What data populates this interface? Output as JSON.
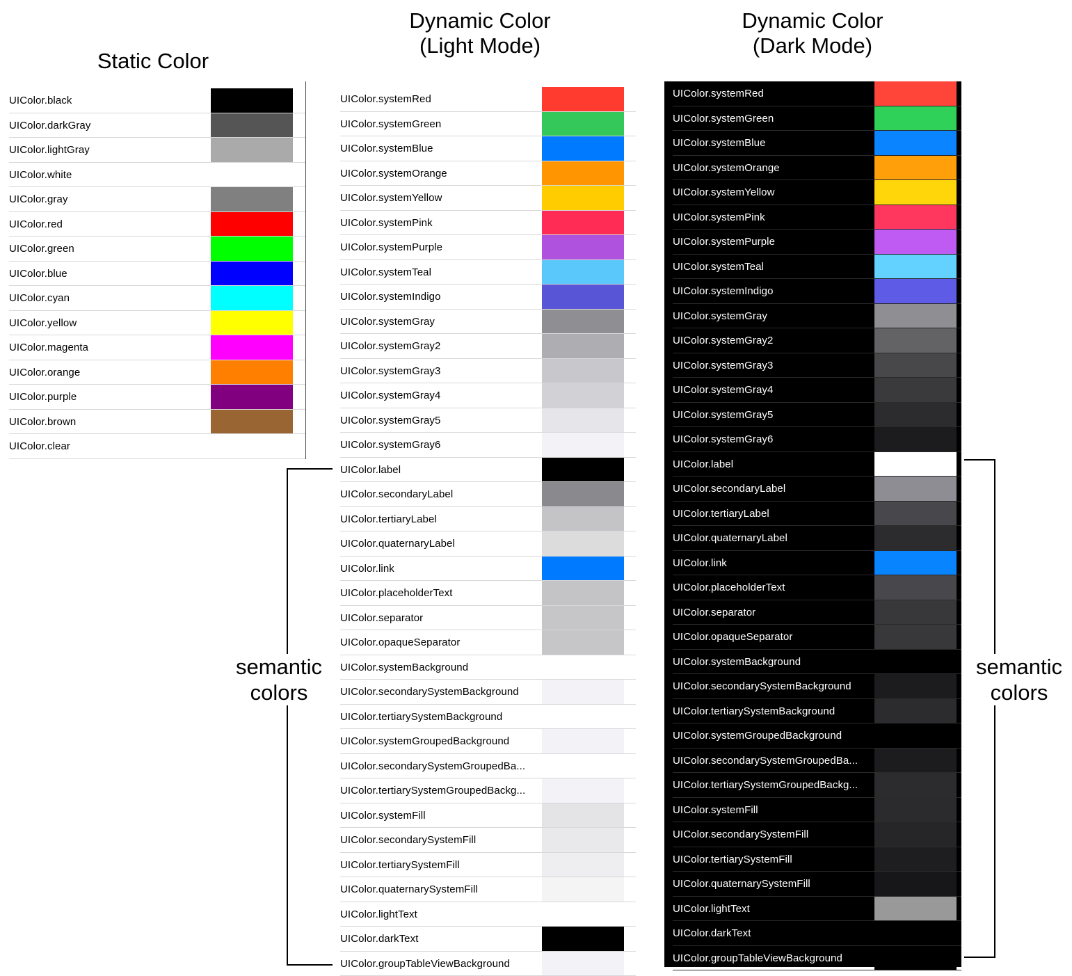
{
  "titles": {
    "static": "Static Color",
    "light": "Dynamic Color\n(Light Mode)",
    "dark": "Dynamic Color\n(Dark Mode)"
  },
  "semantic_label": "semantic\ncolors",
  "static_colors": [
    {
      "label": "UIColor.black",
      "color": "#000000"
    },
    {
      "label": "UIColor.darkGray",
      "color": "#555555"
    },
    {
      "label": "UIColor.lightGray",
      "color": "#AAAAAA"
    },
    {
      "label": "UIColor.white",
      "color": "#FFFFFF"
    },
    {
      "label": "UIColor.gray",
      "color": "#808080"
    },
    {
      "label": "UIColor.red",
      "color": "#FF0000"
    },
    {
      "label": "UIColor.green",
      "color": "#00FF00"
    },
    {
      "label": "UIColor.blue",
      "color": "#0000FF"
    },
    {
      "label": "UIColor.cyan",
      "color": "#00FFFF"
    },
    {
      "label": "UIColor.yellow",
      "color": "#FFFF00"
    },
    {
      "label": "UIColor.magenta",
      "color": "#FF00FF"
    },
    {
      "label": "UIColor.orange",
      "color": "#FF8000"
    },
    {
      "label": "UIColor.purple",
      "color": "#800080"
    },
    {
      "label": "UIColor.brown",
      "color": "#996633"
    },
    {
      "label": "UIColor.clear",
      "color": "transparent"
    }
  ],
  "light_colors": [
    {
      "label": "UIColor.systemRed",
      "color": "#FF3B30"
    },
    {
      "label": "UIColor.systemGreen",
      "color": "#34C759"
    },
    {
      "label": "UIColor.systemBlue",
      "color": "#007AFF"
    },
    {
      "label": "UIColor.systemOrange",
      "color": "#FF9500"
    },
    {
      "label": "UIColor.systemYellow",
      "color": "#FFCC00"
    },
    {
      "label": "UIColor.systemPink",
      "color": "#FF2D55"
    },
    {
      "label": "UIColor.systemPurple",
      "color": "#AF52DE"
    },
    {
      "label": "UIColor.systemTeal",
      "color": "#5AC8FA"
    },
    {
      "label": "UIColor.systemIndigo",
      "color": "#5856D6"
    },
    {
      "label": "UIColor.systemGray",
      "color": "#8E8E93"
    },
    {
      "label": "UIColor.systemGray2",
      "color": "#AEAEB2"
    },
    {
      "label": "UIColor.systemGray3",
      "color": "#C7C7CC"
    },
    {
      "label": "UIColor.systemGray4",
      "color": "#D1D1D6"
    },
    {
      "label": "UIColor.systemGray5",
      "color": "#E5E5EA"
    },
    {
      "label": "UIColor.systemGray6",
      "color": "#F2F2F7"
    },
    {
      "label": "UIColor.label",
      "color": "#000000"
    },
    {
      "label": "UIColor.secondaryLabel",
      "color": "#8A8A8E"
    },
    {
      "label": "UIColor.tertiaryLabel",
      "color": "#C4C4C6"
    },
    {
      "label": "UIColor.quaternaryLabel",
      "color": "#DCDCDD"
    },
    {
      "label": "UIColor.link",
      "color": "#007AFF"
    },
    {
      "label": "UIColor.placeholderText",
      "color": "#C4C4C6"
    },
    {
      "label": "UIColor.separator",
      "color": "#C6C6C8"
    },
    {
      "label": "UIColor.opaqueSeparator",
      "color": "#C6C6C8"
    },
    {
      "label": "UIColor.systemBackground",
      "color": "#FFFFFF"
    },
    {
      "label": "UIColor.secondarySystemBackground",
      "color": "#F2F2F7"
    },
    {
      "label": "UIColor.tertiarySystemBackground",
      "color": "#FFFFFF"
    },
    {
      "label": "UIColor.systemGroupedBackground",
      "color": "#F2F2F7"
    },
    {
      "label": "UIColor.secondarySystemGroupedBa...",
      "color": "#FFFFFF"
    },
    {
      "label": "UIColor.tertiarySystemGroupedBackg...",
      "color": "#F2F2F7"
    },
    {
      "label": "UIColor.systemFill",
      "color": "#E4E4E6"
    },
    {
      "label": "UIColor.secondarySystemFill",
      "color": "#E9E9EB"
    },
    {
      "label": "UIColor.tertiarySystemFill",
      "color": "#EEEEF0"
    },
    {
      "label": "UIColor.quaternarySystemFill",
      "color": "#F4F4F5"
    },
    {
      "label": "UIColor.lightText",
      "color": "#FFFFFF"
    },
    {
      "label": "UIColor.darkText",
      "color": "#000000"
    },
    {
      "label": "UIColor.groupTableViewBackground",
      "color": "#F2F2F7"
    }
  ],
  "dark_colors": [
    {
      "label": "UIColor.systemRed",
      "color": "#FF453A"
    },
    {
      "label": "UIColor.systemGreen",
      "color": "#30D158"
    },
    {
      "label": "UIColor.systemBlue",
      "color": "#0A84FF"
    },
    {
      "label": "UIColor.systemOrange",
      "color": "#FF9F0A"
    },
    {
      "label": "UIColor.systemYellow",
      "color": "#FFD60A"
    },
    {
      "label": "UIColor.systemPink",
      "color": "#FF375F"
    },
    {
      "label": "UIColor.systemPurple",
      "color": "#BF5AF2"
    },
    {
      "label": "UIColor.systemTeal",
      "color": "#64D2FF"
    },
    {
      "label": "UIColor.systemIndigo",
      "color": "#5E5CE6"
    },
    {
      "label": "UIColor.systemGray",
      "color": "#8E8E93"
    },
    {
      "label": "UIColor.systemGray2",
      "color": "#636366"
    },
    {
      "label": "UIColor.systemGray3",
      "color": "#48484A"
    },
    {
      "label": "UIColor.systemGray4",
      "color": "#3A3A3C"
    },
    {
      "label": "UIColor.systemGray5",
      "color": "#2C2C2E"
    },
    {
      "label": "UIColor.systemGray6",
      "color": "#1C1C1E"
    },
    {
      "label": "UIColor.label",
      "color": "#FFFFFF"
    },
    {
      "label": "UIColor.secondaryLabel",
      "color": "#8D8D93"
    },
    {
      "label": "UIColor.tertiaryLabel",
      "color": "#48484C"
    },
    {
      "label": "UIColor.quaternaryLabel",
      "color": "#2C2C2E"
    },
    {
      "label": "UIColor.link",
      "color": "#0984FF"
    },
    {
      "label": "UIColor.placeholderText",
      "color": "#48484C"
    },
    {
      "label": "UIColor.separator",
      "color": "#38383A"
    },
    {
      "label": "UIColor.opaqueSeparator",
      "color": "#38383A"
    },
    {
      "label": "UIColor.systemBackground",
      "color": "#000000"
    },
    {
      "label": "UIColor.secondarySystemBackground",
      "color": "#1C1C1E"
    },
    {
      "label": "UIColor.tertiarySystemBackground",
      "color": "#2C2C2E"
    },
    {
      "label": "UIColor.systemGroupedBackground",
      "color": "#000000"
    },
    {
      "label": "UIColor.secondarySystemGroupedBa...",
      "color": "#1C1C1E"
    },
    {
      "label": "UIColor.tertiarySystemGroupedBackg...",
      "color": "#2C2C2E"
    },
    {
      "label": "UIColor.systemFill",
      "color": "#2B2B2D"
    },
    {
      "label": "UIColor.secondarySystemFill",
      "color": "#262628"
    },
    {
      "label": "UIColor.tertiarySystemFill",
      "color": "#1E1E20"
    },
    {
      "label": "UIColor.quaternarySystemFill",
      "color": "#171719"
    },
    {
      "label": "UIColor.lightText",
      "color": "#999999"
    },
    {
      "label": "UIColor.darkText",
      "color": "#000000"
    },
    {
      "label": "UIColor.groupTableViewBackground",
      "color": "#000000"
    }
  ]
}
